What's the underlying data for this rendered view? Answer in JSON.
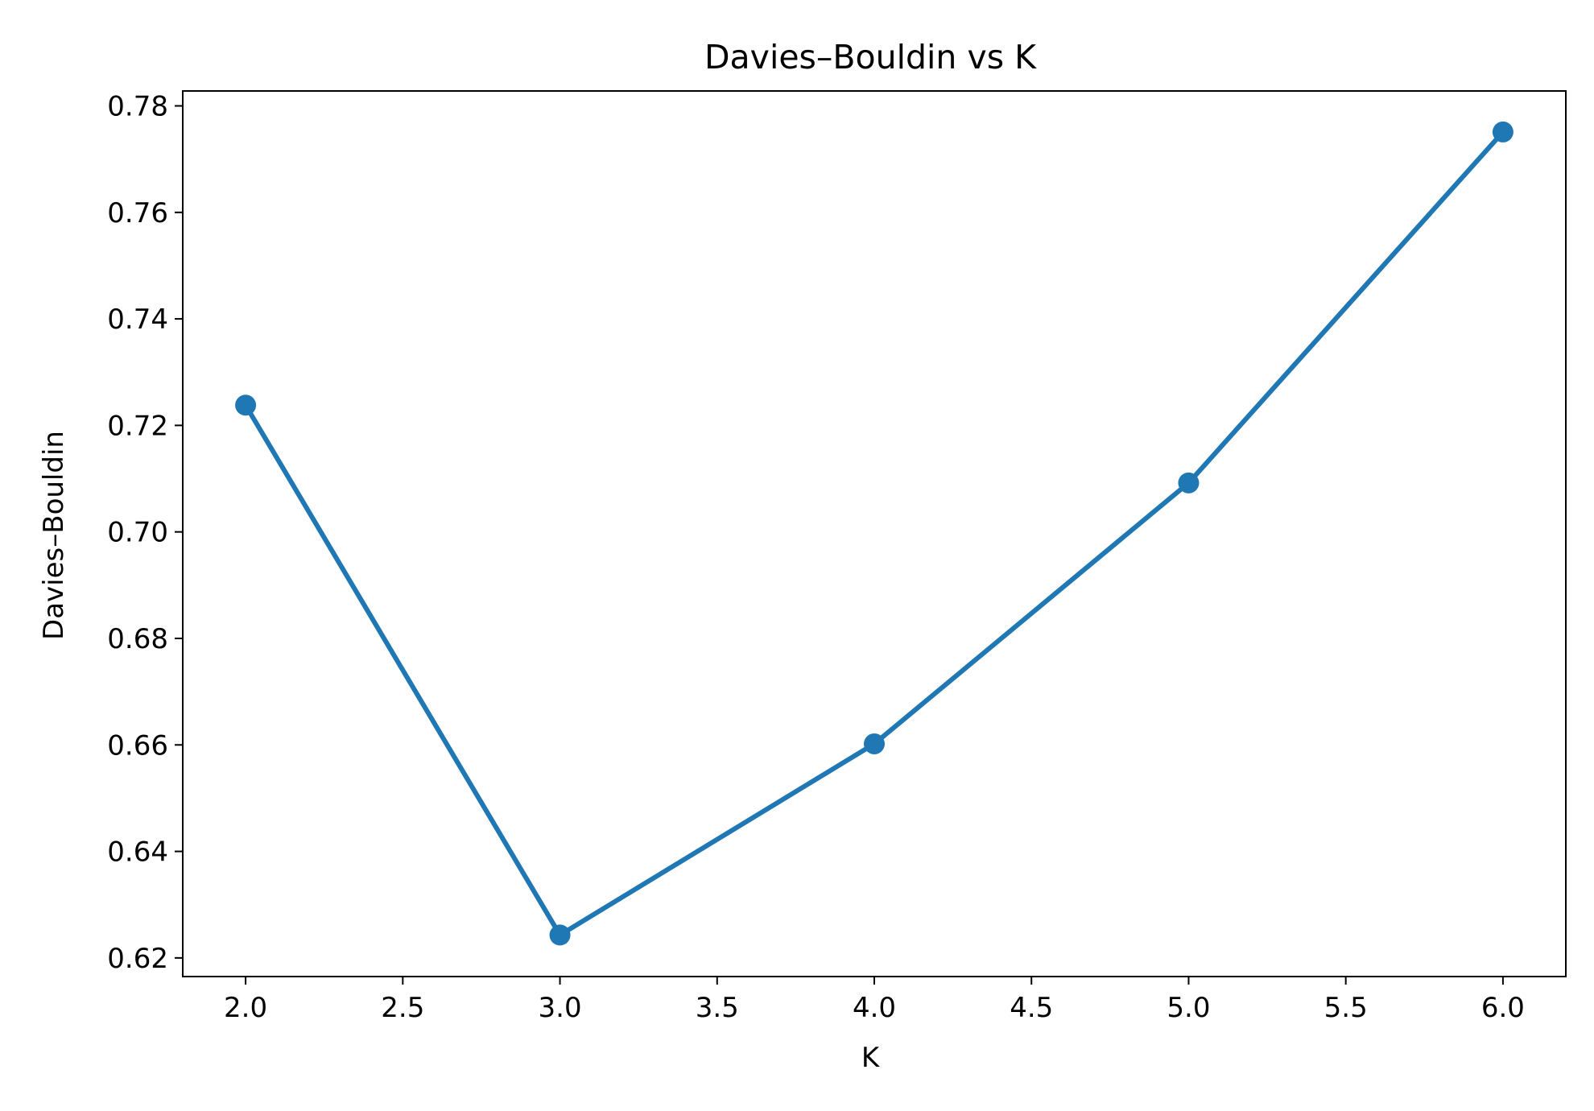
{
  "chart_data": {
    "type": "line",
    "title": "Davies–Bouldin vs K",
    "xlabel": "K",
    "ylabel": "Davies–Bouldin",
    "x": [
      2,
      3,
      4,
      5,
      6
    ],
    "series": [
      {
        "values": [
          0.7238,
          0.6243,
          0.6602,
          0.7092,
          0.7751
        ],
        "color": "#1f77b4",
        "marker": "circle"
      }
    ],
    "xlim": [
      1.8,
      6.2
    ],
    "ylim": [
      0.6165,
      0.7828
    ],
    "x_ticks": [
      "2.0",
      "2.5",
      "3.0",
      "3.5",
      "4.0",
      "4.5",
      "5.0",
      "5.5",
      "6.0"
    ],
    "y_ticks": [
      "0.62",
      "0.64",
      "0.66",
      "0.68",
      "0.70",
      "0.72",
      "0.74",
      "0.76",
      "0.78"
    ],
    "grid": false,
    "legend": "none"
  }
}
